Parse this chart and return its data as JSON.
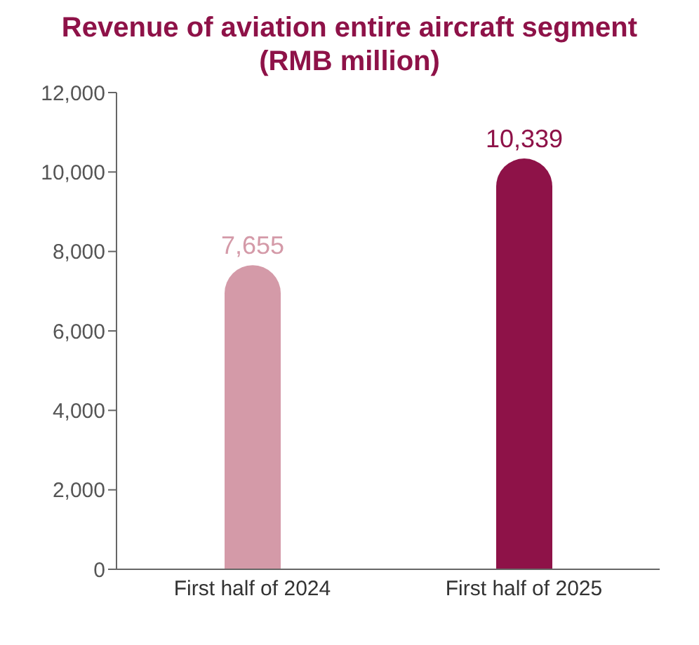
{
  "chart_data": {
    "type": "bar",
    "title": "Revenue of aviation entire aircraft segment\n(RMB million)",
    "categories": [
      "First half of 2024",
      "First half of 2025"
    ],
    "values": [
      7655,
      10339
    ],
    "colors": [
      "#d49aa8",
      "#8e1248"
    ],
    "ylim": [
      0,
      12000
    ],
    "yticks": [
      {
        "value": 0,
        "label": "0"
      },
      {
        "value": 2000,
        "label": "2,000"
      },
      {
        "value": 4000,
        "label": "4,000"
      },
      {
        "value": 6000,
        "label": "6,000"
      },
      {
        "value": 8000,
        "label": "8,000"
      },
      {
        "value": 10000,
        "label": "10,000"
      },
      {
        "value": 12000,
        "label": "12,000"
      }
    ],
    "value_labels": [
      "7,655",
      "10,339"
    ],
    "grid": false,
    "legend": false
  }
}
